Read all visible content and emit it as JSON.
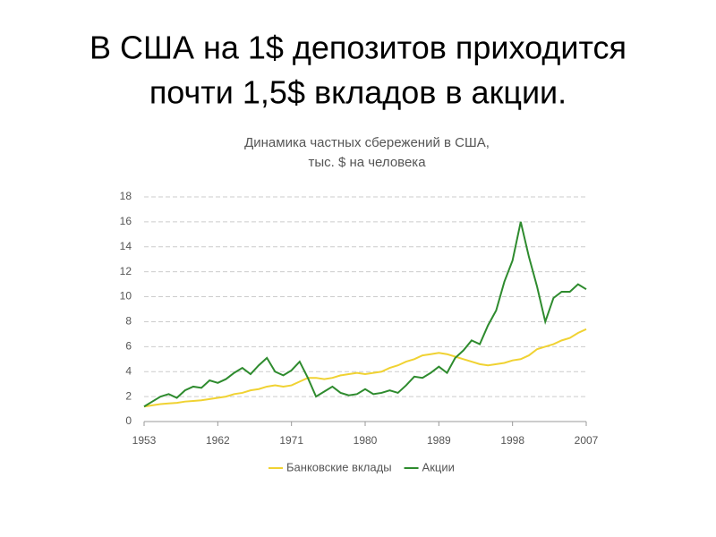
{
  "chart_data": {
    "type": "line",
    "heading": [
      "В США на 1$ депозитов приходится",
      "почти 1,5$ вкладов в акции."
    ],
    "title": [
      "Динамика частных сбережений в США,",
      "тыс. $ на человека"
    ],
    "x": [
      1953,
      1954,
      1955,
      1956,
      1957,
      1958,
      1959,
      1960,
      1961,
      1962,
      1963,
      1964,
      1965,
      1966,
      1967,
      1968,
      1969,
      1970,
      1971,
      1972,
      1973,
      1974,
      1975,
      1976,
      1977,
      1978,
      1979,
      1980,
      1981,
      1982,
      1983,
      1984,
      1985,
      1986,
      1987,
      1988,
      1989,
      1990,
      1991,
      1992,
      1993,
      1994,
      1995,
      1996,
      1997,
      1998,
      1999,
      2000,
      2001,
      2002,
      2003,
      2004,
      2005,
      2006,
      2007
    ],
    "series": [
      {
        "name": "Банковские вклады",
        "color": "#f0d232",
        "values": [
          1.2,
          1.3,
          1.4,
          1.45,
          1.5,
          1.6,
          1.65,
          1.7,
          1.8,
          1.9,
          2.0,
          2.2,
          2.3,
          2.5,
          2.6,
          2.8,
          2.9,
          2.8,
          2.9,
          3.2,
          3.5,
          3.5,
          3.4,
          3.5,
          3.7,
          3.8,
          3.9,
          3.8,
          3.9,
          4.0,
          4.3,
          4.5,
          4.8,
          5.0,
          5.3,
          5.4,
          5.5,
          5.4,
          5.2,
          5.0,
          4.8,
          4.6,
          4.5,
          4.6,
          4.7,
          4.9,
          5.0,
          5.3,
          5.8,
          6.0,
          6.2,
          6.5,
          6.7,
          7.1,
          7.4
        ]
      },
      {
        "name": "Акции",
        "color": "#2e8b2e",
        "values": [
          1.2,
          1.6,
          2.0,
          2.2,
          1.9,
          2.5,
          2.8,
          2.7,
          3.3,
          3.1,
          3.4,
          3.9,
          4.3,
          3.8,
          4.5,
          5.1,
          4.0,
          3.7,
          4.1,
          4.8,
          3.5,
          2.0,
          2.4,
          2.8,
          2.3,
          2.1,
          2.2,
          2.6,
          2.2,
          2.3,
          2.5,
          2.3,
          2.9,
          3.6,
          3.5,
          3.9,
          4.4,
          3.9,
          5.1,
          5.7,
          6.5,
          6.2,
          7.7,
          8.9,
          11.2,
          12.9,
          16.0,
          13.2,
          10.8,
          8.0,
          9.9,
          10.4,
          10.4,
          11.0,
          10.6
        ]
      }
    ],
    "xlim": [
      1953,
      2007
    ],
    "xticks": [
      1953,
      1962,
      1971,
      1980,
      1989,
      1998,
      2007
    ],
    "ylim": [
      0,
      18
    ],
    "yticks": [
      0,
      2,
      4,
      6,
      8,
      10,
      12,
      14,
      16,
      18
    ],
    "grid": true,
    "legend": "bottom"
  }
}
